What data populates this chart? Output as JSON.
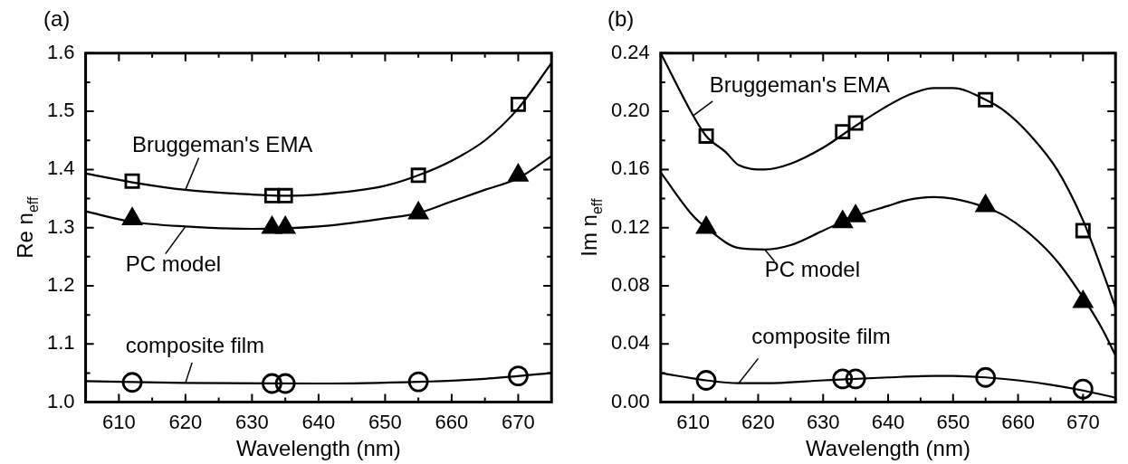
{
  "chart_data": [
    {
      "type": "scatter",
      "title": "(a)",
      "xlabel": "Wavelength (nm)",
      "ylabel": "Re n$_{eff}$",
      "xlim": [
        605,
        675
      ],
      "xticks": [
        {
          "value": 605,
          "label": null
        },
        610,
        {
          "value": 615,
          "label": null
        },
        620,
        {
          "value": 625,
          "label": null
        },
        630,
        {
          "value": 635,
          "label": null
        },
        640,
        {
          "value": 645,
          "label": null
        },
        650,
        {
          "value": 655,
          "label": null
        },
        660,
        {
          "value": 665,
          "label": null
        },
        670,
        {
          "value": 675,
          "label": null
        }
      ],
      "ylim": [
        1.0,
        1.6
      ],
      "yticks": [
        "1.0",
        {
          "value": 1.05,
          "label": null
        },
        1.1,
        {
          "value": 1.15,
          "label": null
        },
        1.2,
        {
          "value": 1.25,
          "label": null
        },
        1.3,
        {
          "value": 1.35,
          "label": null
        },
        1.4,
        {
          "value": 1.45,
          "label": null
        },
        1.5,
        {
          "value": 1.55,
          "label": null
        },
        1.6
      ],
      "grid": false,
      "legend": false,
      "annotations": [
        {
          "text": "Bruggeman's EMA",
          "x": 620,
          "y": 1.365
        },
        {
          "text": "PC model",
          "x": 620,
          "y": 1.302
        },
        {
          "text": "composite film",
          "x": 620,
          "y": 1.033
        }
      ],
      "series": [
        {
          "type": "scatter",
          "marker": "square",
          "color": "#000000",
          "x": [
            612,
            633,
            635,
            655,
            670
          ],
          "values": [
            1.38,
            1.355,
            1.355,
            1.39,
            1.512
          ]
        },
        {
          "type": "scatter",
          "marker": "triangle",
          "color": "#000000",
          "x": [
            612,
            633,
            635,
            655,
            670
          ],
          "values": [
            1.315,
            1.3,
            1.3,
            1.325,
            1.39
          ]
        },
        {
          "type": "scatter",
          "marker": "circle",
          "color": "#000000",
          "x": [
            612,
            633,
            635,
            655,
            670
          ],
          "values": [
            1.034,
            1.032,
            1.032,
            1.035,
            1.045
          ]
        },
        {
          "type": "line",
          "marker": "none",
          "color": "#000000",
          "x": [
            605,
            612,
            620,
            630,
            635,
            640,
            650,
            655,
            660,
            665,
            670,
            675
          ],
          "values": [
            1.393,
            1.378,
            1.365,
            1.357,
            1.355,
            1.357,
            1.372,
            1.39,
            1.415,
            1.45,
            1.505,
            1.583
          ]
        },
        {
          "type": "line",
          "marker": "none",
          "color": "#000000",
          "x": [
            605,
            612,
            620,
            630,
            640,
            650,
            655,
            660,
            665,
            670,
            675
          ],
          "values": [
            1.328,
            1.31,
            1.302,
            1.298,
            1.302,
            1.316,
            1.325,
            1.345,
            1.365,
            1.385,
            1.423
          ]
        },
        {
          "type": "line",
          "marker": "none",
          "color": "#000000",
          "x": [
            605,
            620,
            640,
            655,
            665,
            675
          ],
          "values": [
            1.036,
            1.033,
            1.032,
            1.035,
            1.04,
            1.05
          ]
        }
      ]
    },
    {
      "type": "scatter",
      "title": "(b)",
      "xlabel": "Wavelength (nm)",
      "ylabel": "Im n$_{eff}$",
      "xlim": [
        605,
        675
      ],
      "xticks": [
        {
          "value": 605,
          "label": null
        },
        610,
        {
          "value": 615,
          "label": null
        },
        620,
        {
          "value": 625,
          "label": null
        },
        630,
        {
          "value": 635,
          "label": null
        },
        640,
        {
          "value": 645,
          "label": null
        },
        650,
        {
          "value": 655,
          "label": null
        },
        660,
        {
          "value": 665,
          "label": null
        },
        670,
        {
          "value": 675,
          "label": null
        }
      ],
      "ylim": [
        0,
        0.24
      ],
      "yticks": [
        {
          "value": 0,
          "label": "0.00"
        },
        {
          "value": 0.02,
          "label": null
        },
        {
          "value": 0.04,
          "label": "0.04"
        },
        {
          "value": 0.06,
          "label": null
        },
        {
          "value": 0.08,
          "label": "0.08"
        },
        {
          "value": 0.1,
          "label": null
        },
        {
          "value": 0.12,
          "label": "0.12"
        },
        {
          "value": 0.14,
          "label": null
        },
        {
          "value": 0.16,
          "label": "0.16"
        },
        {
          "value": 0.18,
          "label": null
        },
        {
          "value": 0.2,
          "label": "0.20"
        },
        {
          "value": 0.22,
          "label": null
        },
        {
          "value": 0.24,
          "label": "0.24"
        }
      ],
      "grid": false,
      "legend": false,
      "annotations": [
        {
          "text": "Bruggeman's EMA",
          "x": 610,
          "y": 0.197
        },
        {
          "text": "PC model",
          "x": 621,
          "y": 0.105
        },
        {
          "text": "composite film",
          "x": 617,
          "y": 0.013
        }
      ],
      "series": [
        {
          "type": "scatter",
          "marker": "square",
          "color": "#000000",
          "x": [
            612,
            633,
            635,
            655,
            670
          ],
          "values": [
            0.183,
            0.186,
            0.192,
            0.208,
            0.118
          ]
        },
        {
          "type": "scatter",
          "marker": "triangle",
          "color": "#000000",
          "x": [
            612,
            633,
            635,
            655,
            670
          ],
          "values": [
            0.12,
            0.124,
            0.128,
            0.135,
            0.069
          ]
        },
        {
          "type": "scatter",
          "marker": "circle",
          "color": "#000000",
          "x": [
            612,
            633,
            635,
            655,
            670
          ],
          "values": [
            0.015,
            0.016,
            0.016,
            0.017,
            0.009
          ]
        },
        {
          "type": "line",
          "marker": "none",
          "color": "#000000",
          "x": [
            605,
            610,
            612,
            615,
            617,
            621,
            625,
            630,
            635,
            640,
            643,
            647,
            650,
            655,
            658,
            662,
            666,
            670,
            673,
            675
          ],
          "values": [
            0.24,
            0.197,
            0.183,
            0.172,
            0.163,
            0.16,
            0.164,
            0.175,
            0.19,
            0.204,
            0.211,
            0.216,
            0.216,
            0.208,
            0.2,
            0.183,
            0.16,
            0.125,
            0.09,
            0.065
          ]
        },
        {
          "type": "line",
          "marker": "none",
          "color": "#000000",
          "x": [
            605,
            610,
            612,
            617,
            621,
            625,
            630,
            635,
            640,
            643,
            647,
            650,
            655,
            658,
            662,
            666,
            670,
            673,
            675
          ],
          "values": [
            0.158,
            0.128,
            0.12,
            0.106,
            0.105,
            0.108,
            0.118,
            0.128,
            0.135,
            0.139,
            0.141,
            0.14,
            0.134,
            0.128,
            0.115,
            0.097,
            0.072,
            0.05,
            0.032
          ]
        },
        {
          "type": "line",
          "marker": "none",
          "color": "#000000",
          "x": [
            605,
            612,
            617,
            621,
            630,
            640,
            647,
            650,
            655,
            660,
            665,
            670,
            675
          ],
          "values": [
            0.02,
            0.015,
            0.013,
            0.013,
            0.015,
            0.017,
            0.018,
            0.018,
            0.017,
            0.015,
            0.012,
            0.008,
            0.003
          ]
        }
      ]
    }
  ]
}
